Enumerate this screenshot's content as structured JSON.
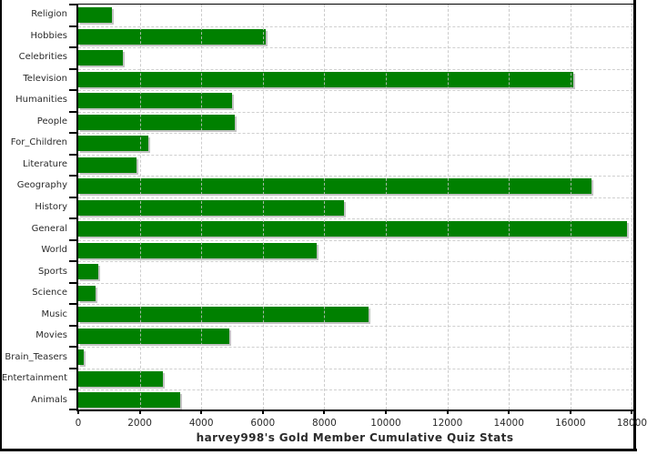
{
  "title": "harvey998's Gold Member Cumulative Quiz Stats",
  "chart_data": {
    "type": "bar",
    "orientation": "horizontal",
    "title": "harvey998's Gold Member Cumulative Quiz Stats",
    "categories": [
      "Religion",
      "Hobbies",
      "Celebrities",
      "Television",
      "Humanities",
      "People",
      "For_Children",
      "Literature",
      "Geography",
      "History",
      "General",
      "World",
      "Sports",
      "Science",
      "Music",
      "Movies",
      "Brain_Teasers",
      "Entertainment",
      "Animals"
    ],
    "values": [
      1100,
      6100,
      1450,
      16100,
      5000,
      5100,
      2280,
      1900,
      16700,
      8650,
      17850,
      7750,
      650,
      550,
      9450,
      4900,
      190,
      2750,
      3300
    ],
    "xlabel": "",
    "ylabel": "",
    "xlim": [
      0,
      18000
    ],
    "x_ticks": [
      0,
      2000,
      4000,
      6000,
      8000,
      10000,
      12000,
      14000,
      16000,
      18000
    ],
    "x_tick_labels": [
      "0",
      "2000",
      "4000",
      "6000",
      "8000",
      "10000",
      "12000",
      "14000",
      "16000",
      "18000"
    ],
    "grid": "on",
    "legend": "none",
    "colors": {
      "bar": "#008000",
      "bar_shadow": "#c4c4c4",
      "gridline": "#cfcfcf",
      "axis": "#000000",
      "text": "#2a2a2a"
    }
  }
}
